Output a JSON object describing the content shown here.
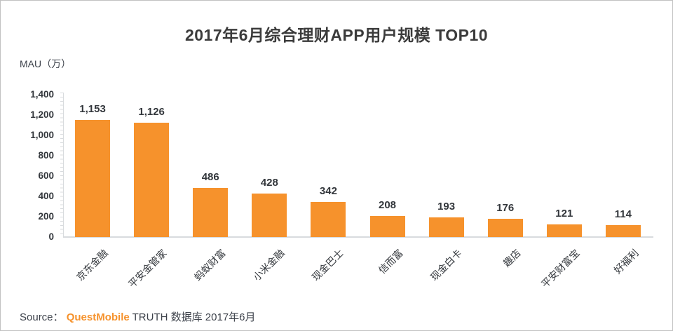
{
  "title": "2017年6月综合理财APP用户规模 TOP10",
  "chart_data": {
    "type": "bar",
    "title": "2017年6月综合理财APP用户规模 TOP10",
    "xlabel": "",
    "ylabel": "MAU（万）",
    "categories": [
      "京东金融",
      "平安金管家",
      "蚂蚁财富",
      "小米金融",
      "现金巴士",
      "信而富",
      "现金白卡",
      "趣店",
      "平安财富宝",
      "好福利"
    ],
    "values": [
      1153,
      1126,
      486,
      428,
      342,
      208,
      193,
      176,
      121,
      114
    ],
    "value_labels": [
      "1,153",
      "1,126",
      "486",
      "428",
      "342",
      "208",
      "193",
      "176",
      "121",
      "114"
    ],
    "ylim": [
      0,
      1400
    ],
    "y_ticks": [
      "1,400",
      "1,200",
      "1,000",
      "800",
      "600",
      "400",
      "200",
      "0"
    ],
    "grid": false,
    "legend": "none",
    "bar_color": "#f6922c"
  },
  "footer": {
    "source_label": "Source：",
    "brand": "QuestMobile",
    "source_rest": " TRUTH 数据库 2017年6月"
  },
  "colors": {
    "bar": "#f6922c",
    "brand_orange": "#f6922c",
    "title_text": "#3b3b3b",
    "label_text": "#33373c",
    "axis_line": "#d8dbde"
  }
}
